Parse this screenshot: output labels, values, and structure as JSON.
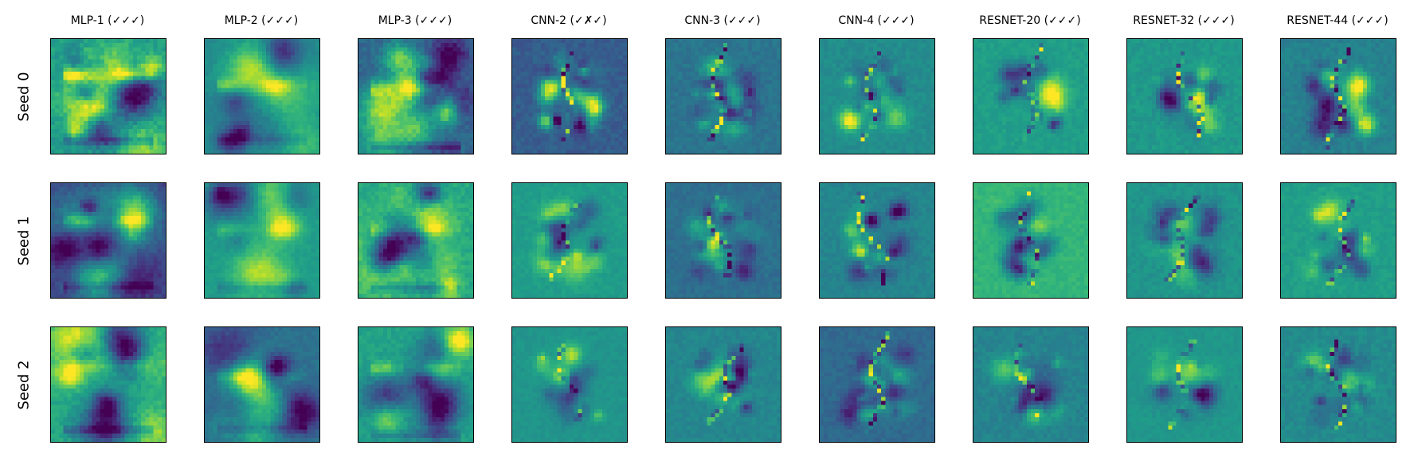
{
  "chart_data": {
    "type": "heatmap",
    "colormap": "viridis",
    "grid": false,
    "columns": [
      {
        "title": "MLP-1 (✓✓✓)",
        "family": "mlp"
      },
      {
        "title": "MLP-2 (✓✓✓)",
        "family": "mlp"
      },
      {
        "title": "MLP-3 (✓✓✓)",
        "family": "mlp"
      },
      {
        "title": "CNN-2 (✓✗✓)",
        "family": "cnn"
      },
      {
        "title": "CNN-3 (✓✓✓)",
        "family": "cnn"
      },
      {
        "title": "CNN-4 (✓✓✓)",
        "family": "cnn"
      },
      {
        "title": "RESNET-20 (✓✓✓)",
        "family": "resnet"
      },
      {
        "title": "RESNET-32 (✓✓✓)",
        "family": "resnet"
      },
      {
        "title": "RESNET-44 (✓✓✓)",
        "family": "resnet"
      }
    ],
    "rows": [
      {
        "label": "Seed 0"
      },
      {
        "label": "Seed 1"
      },
      {
        "label": "Seed 2"
      }
    ]
  }
}
